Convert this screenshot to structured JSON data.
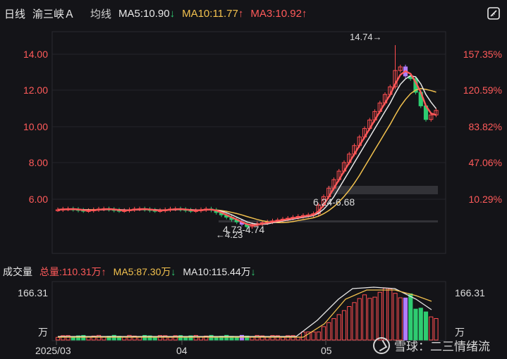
{
  "header": {
    "period": "日线",
    "stock": "渝三峡Ａ",
    "mode": "均线",
    "ma5": "MA5:10.90",
    "ma10": "MA10:11.77",
    "ma3": "MA3:10.92",
    "ma5_arrow": "↓",
    "ma10_arrow": "↑",
    "ma3_arrow": "↑"
  },
  "price_axis": {
    "left_ticks": [
      "14.00",
      "12.00",
      "10.00",
      "8.00",
      "6.00"
    ],
    "right_ticks": [
      "157.35%",
      "120.59%",
      "83.82%",
      "47.06%",
      "10.29%"
    ]
  },
  "annotations": {
    "high": "14.74→",
    "low": "←4.23",
    "range1": "6.24-6.68",
    "range2": "4.73-4.74"
  },
  "volume_header": {
    "label": "成交量",
    "total": "总量:110.31万",
    "total_arrow": "↑",
    "ma5": "MA5:87.30万",
    "ma5_arrow": "↓",
    "ma10": "MA10:115.44万",
    "ma10_arrow": "↓"
  },
  "volume_axis": {
    "top_left": "166.31",
    "top_right": "166.31",
    "unit_left": "万",
    "unit_right": "万"
  },
  "x_axis": [
    "2025/03",
    "04",
    "05"
  ],
  "watermark": "雪球：二三情绪流",
  "colors": {
    "up": "#ff4d4f",
    "down": "#2ecc71",
    "ma5": "#e8e8e8",
    "ma10": "#f2c14e",
    "ma3": "#ff5a5a",
    "purple": "#b07cff"
  },
  "icons": {
    "toolbar": "ruler-icon"
  },
  "chart_data": {
    "type": "candlestick",
    "price_range": [
      4.23,
      14.74
    ],
    "series": [
      {
        "name": "MA5",
        "value": 10.9
      },
      {
        "name": "MA10",
        "value": 11.77
      },
      {
        "name": "MA3",
        "value": 10.92
      }
    ],
    "volume_max": 166.31,
    "total_volume": 110.31,
    "volume_ma5": 87.3,
    "volume_ma10": 115.44
  }
}
